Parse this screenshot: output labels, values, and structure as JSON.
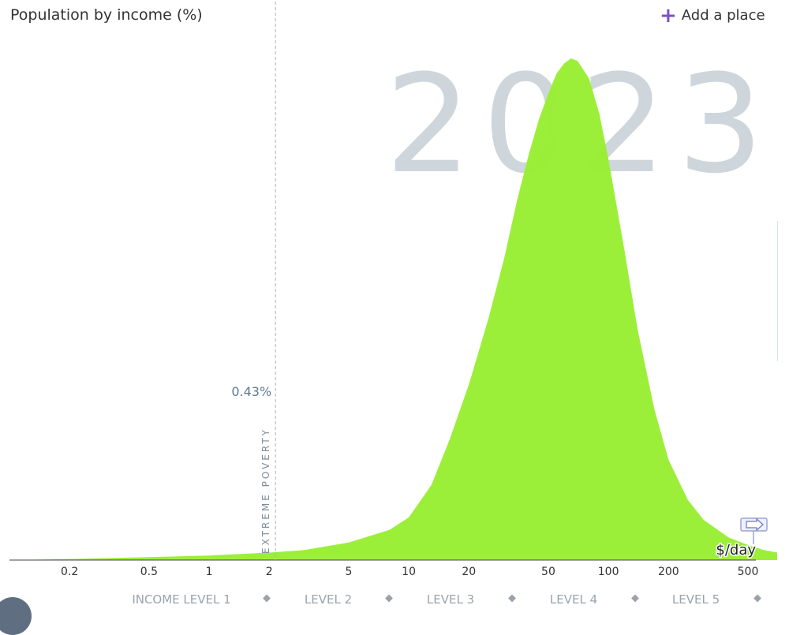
{
  "header": {
    "title": "Population by income (%)",
    "add_place_label": "Add a place",
    "add_place_icon": "plus-icon"
  },
  "chart_data": {
    "type": "area",
    "title": "Population by income (%)",
    "year": "2023",
    "xlabel": "$/day",
    "x_scale": "log",
    "xlim": [
      0.1,
      700
    ],
    "x_ticks": [
      0.2,
      0.5,
      1,
      2,
      5,
      10,
      20,
      50,
      100,
      200,
      500
    ],
    "x_tick_labels": [
      "0.2",
      "0.5",
      "1",
      "2",
      "5",
      "10",
      "20",
      "50",
      "100",
      "200",
      "500"
    ],
    "extreme_poverty": {
      "x": 2.15,
      "label": "EXTREME POVERTY",
      "share_label": "0.43%"
    },
    "income_levels": [
      "INCOME LEVEL 1",
      "LEVEL 2",
      "LEVEL 3",
      "LEVEL 4",
      "LEVEL 5"
    ],
    "series": [
      {
        "color": "#99ee33",
        "points": [
          [
            0.1,
            0.0
          ],
          [
            0.2,
            0.002
          ],
          [
            0.5,
            0.006
          ],
          [
            1,
            0.009
          ],
          [
            2,
            0.015
          ],
          [
            3,
            0.02
          ],
          [
            5,
            0.035
          ],
          [
            8,
            0.06
          ],
          [
            10,
            0.085
          ],
          [
            13,
            0.15
          ],
          [
            16,
            0.24
          ],
          [
            20,
            0.35
          ],
          [
            25,
            0.48
          ],
          [
            30,
            0.6
          ],
          [
            35,
            0.72
          ],
          [
            40,
            0.81
          ],
          [
            45,
            0.88
          ],
          [
            50,
            0.93
          ],
          [
            55,
            0.97
          ],
          [
            60,
            0.99
          ],
          [
            65,
            1.0
          ],
          [
            70,
            0.995
          ],
          [
            80,
            0.96
          ],
          [
            90,
            0.89
          ],
          [
            100,
            0.8
          ],
          [
            120,
            0.62
          ],
          [
            140,
            0.46
          ],
          [
            170,
            0.3
          ],
          [
            200,
            0.2
          ],
          [
            250,
            0.12
          ],
          [
            300,
            0.08
          ],
          [
            400,
            0.045
          ],
          [
            500,
            0.03
          ],
          [
            600,
            0.02
          ],
          [
            700,
            0.015
          ]
        ]
      }
    ],
    "marker_icon": "arrow-right-icon",
    "grid": false
  }
}
